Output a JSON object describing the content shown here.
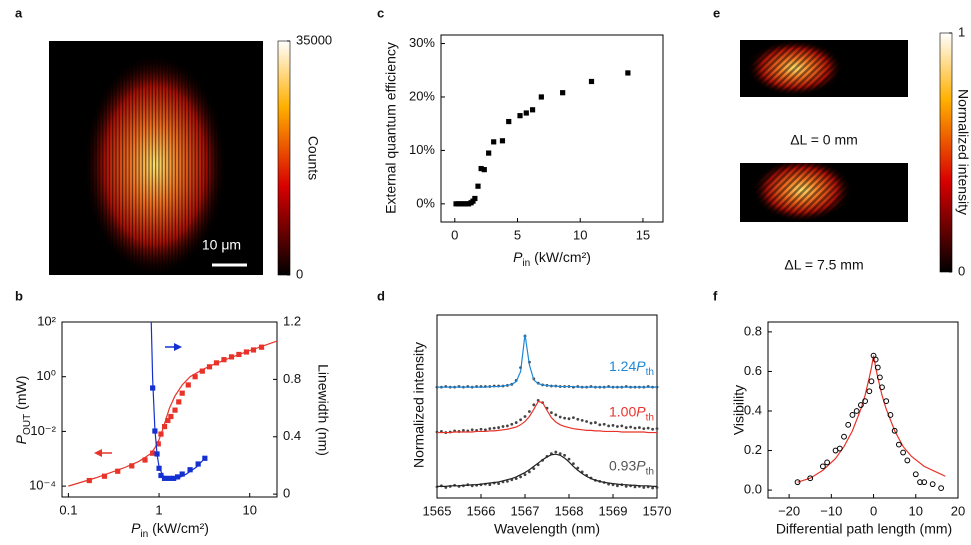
{
  "chart_data": [
    {
      "type": "image",
      "panel": "a",
      "colorbar_label": "Counts",
      "colorbar_lim": [
        0,
        35000
      ],
      "colorbar_ticks": [
        0,
        35000
      ],
      "scale_bar": "10 μm"
    },
    {
      "type": "scatter",
      "panel": "c",
      "xlabel": {
        "symbol": "P",
        "subscript": "in",
        "unit": " (kW/cm²)"
      },
      "ylabel": "External quantum efficiency",
      "xlim": [
        -1.1,
        16.6
      ],
      "xticks": [
        0,
        5,
        10,
        15
      ],
      "ylim": [
        -3.4,
        31.6
      ],
      "yticks": [
        {
          "value": 0,
          "label": "0%"
        },
        {
          "value": 10,
          "label": "10%"
        },
        {
          "value": 20,
          "label": "20%"
        },
        {
          "value": 30,
          "label": "30%"
        }
      ],
      "series": [
        {
          "color": "#000000",
          "marker": "square",
          "line": false,
          "x": [
            0.1,
            0.3,
            0.5,
            0.7,
            0.9,
            1.1,
            1.3,
            1.45,
            1.6,
            1.85,
            2.1,
            2.35,
            2.7,
            3.1,
            3.8,
            4.3,
            5.2,
            5.7,
            6.2,
            6.9,
            8.6,
            10.9,
            13.8
          ],
          "values": [
            0,
            0,
            0,
            0,
            0,
            0,
            0.2,
            0.5,
            1.0,
            3.3,
            6.6,
            6.4,
            9.5,
            11.6,
            11.8,
            15.4,
            16.5,
            17.0,
            17.6,
            20.0,
            20.8,
            22.9,
            24.5
          ]
        }
      ]
    },
    {
      "type": "image",
      "panel": "e",
      "colorbar_label": "Normalized intensity",
      "colorbar_lim": [
        0,
        1
      ],
      "colorbar_ticks": [
        0,
        1
      ],
      "captions": [
        "ΔL = 0 mm",
        "ΔL = 7.5 mm"
      ]
    },
    {
      "type": "line",
      "panel": "b",
      "xlabel": {
        "symbol": "P",
        "subscript": "in",
        "unit": " (kW/cm²)"
      },
      "ylabel": {
        "symbol": "P",
        "subscript": "OUT",
        "unit": " (mW)"
      },
      "y2label": "Linewidth (nm)",
      "xscale": "log",
      "yscale": "log",
      "xlim": [
        0.085,
        20
      ],
      "xticks": [
        0.1,
        1,
        10
      ],
      "ylim": [
        4e-05,
        100
      ],
      "yticks": [
        {
          "value": 0.0001,
          "label": "10⁻⁴"
        },
        {
          "value": 0.01,
          "label": "10⁻²"
        },
        {
          "value": 1,
          "label": "10⁰"
        },
        {
          "value": 100,
          "label": "10²"
        }
      ],
      "y2lim": [
        -0.02,
        1.2
      ],
      "y2ticks": [
        0,
        0.4,
        0.8,
        1.2
      ],
      "series": [
        {
          "color": "#e8332a",
          "marker": "square",
          "line": false,
          "x": [
            0.17,
            0.25,
            0.35,
            0.5,
            0.7,
            0.85,
            0.98,
            1.05,
            1.15,
            1.25,
            1.35,
            1.5,
            1.65,
            1.8,
            2.1,
            2.5,
            3.0,
            3.6,
            4.3,
            5.2,
            6.3,
            7.6,
            9.2,
            11,
            13.5
          ],
          "values": [
            0.00016,
            0.00023,
            0.00035,
            0.00055,
            0.0009,
            0.0016,
            0.0035,
            0.008,
            0.015,
            0.025,
            0.035,
            0.06,
            0.12,
            0.25,
            0.5,
            1.0,
            1.6,
            2.3,
            3.2,
            4.2,
            5.3,
            6.5,
            8,
            9.5,
            12
          ]
        },
        {
          "color": "#e8332a",
          "marker": "none",
          "line": true,
          "x": [
            0.1,
            0.2,
            0.4,
            0.6,
            0.8,
            0.9,
            1.0,
            1.1,
            1.2,
            1.3,
            1.5,
            1.8,
            2.2,
            3,
            4,
            6,
            10,
            20
          ],
          "values": [
            0.0001,
            0.0002,
            0.00045,
            0.0008,
            0.0015,
            0.0025,
            0.005,
            0.012,
            0.03,
            0.07,
            0.2,
            0.5,
            1.0,
            1.8,
            2.8,
            4.8,
            9,
            20
          ]
        },
        {
          "color": "#1530d0",
          "marker": "square",
          "line": false,
          "axis": "y2",
          "x": [
            0.85,
            0.9,
            0.95,
            1.0,
            1.05,
            1.15,
            1.3,
            1.45,
            1.6,
            1.8,
            2.2,
            2.7,
            3.2
          ],
          "values": [
            0.74,
            0.44,
            0.28,
            0.18,
            0.13,
            0.11,
            0.11,
            0.11,
            0.12,
            0.14,
            0.17,
            0.21,
            0.25
          ]
        },
        {
          "color": "#1530d0",
          "marker": "none",
          "line": true,
          "axis": "y2",
          "x": [
            0.82,
            0.85,
            0.9,
            0.95,
            1.0,
            1.1,
            1.3,
            1.6,
            2.0,
            2.6,
            3.2
          ],
          "values": [
            1.2,
            0.8,
            0.45,
            0.28,
            0.19,
            0.13,
            0.105,
            0.11,
            0.14,
            0.19,
            0.25
          ]
        }
      ]
    },
    {
      "type": "line",
      "panel": "d",
      "xlabel": "Wavelength (nm)",
      "ylabel": "Normalized intensity",
      "xlim": [
        1565,
        1570
      ],
      "xticks": [
        1565,
        1566,
        1567,
        1568,
        1569,
        1570
      ],
      "ylim": [
        0,
        3.3
      ],
      "x": [
        1565,
        1565.1,
        1565.2,
        1565.3,
        1565.4,
        1565.5,
        1565.6,
        1565.7,
        1565.8,
        1565.9,
        1566,
        1566.1,
        1566.2,
        1566.3,
        1566.4,
        1566.5,
        1566.6,
        1566.7,
        1566.8,
        1566.9,
        1567,
        1567.1,
        1567.2,
        1567.3,
        1567.4,
        1567.5,
        1567.6,
        1567.7,
        1567.8,
        1567.9,
        1568,
        1568.1,
        1568.2,
        1568.3,
        1568.4,
        1568.5,
        1568.6,
        1568.7,
        1568.8,
        1568.9,
        1569,
        1569.1,
        1569.2,
        1569.3,
        1569.4,
        1569.5,
        1569.6,
        1569.7,
        1569.8,
        1569.9,
        1570
      ],
      "series": [
        {
          "color": "#444444",
          "marker": "dot",
          "line": false,
          "values": [
            2.0,
            2.0,
            2.01,
            2.0,
            2.0,
            2.01,
            2.0,
            2.01,
            2.0,
            2.01,
            2.01,
            2.01,
            2.01,
            2.02,
            2.02,
            2.02,
            2.03,
            2.05,
            2.12,
            2.35,
            2.92,
            2.45,
            2.15,
            2.07,
            2.04,
            2.03,
            2.02,
            2.02,
            2.01,
            2.01,
            2.01,
            2.0,
            2.01,
            2.0,
            2.0,
            2.01,
            2.0,
            2.0,
            2.0,
            2.01,
            2.0,
            2.0,
            2.0,
            2.01,
            2.0,
            2.0,
            2.0,
            2.0,
            2.01,
            2.0,
            2.0
          ]
        },
        {
          "color": "#1e88d8",
          "marker": "none",
          "line": true,
          "label": {
            "prefix": "1.24",
            "symbol": "P",
            "subscript": "th"
          },
          "label_color": "#1e88d8",
          "values": [
            2.0,
            2.0,
            2.0,
            2.0,
            2.0,
            2.0,
            2.0,
            2.0,
            2.0,
            2.0,
            2.0,
            2.0,
            2.01,
            2.01,
            2.01,
            2.02,
            2.03,
            2.05,
            2.1,
            2.28,
            2.95,
            2.4,
            2.13,
            2.06,
            2.04,
            2.03,
            2.02,
            2.02,
            2.01,
            2.01,
            2.01,
            2.01,
            2.0,
            2.0,
            2.0,
            2.0,
            2.0,
            2.0,
            2.0,
            2.0,
            2.0,
            2.0,
            2.0,
            2.0,
            2.0,
            2.0,
            2.0,
            2.0,
            2.0,
            2.0,
            2.0
          ]
        },
        {
          "color": "#444444",
          "marker": "dot",
          "line": false,
          "values": [
            1.19,
            1.2,
            1.18,
            1.19,
            1.21,
            1.2,
            1.22,
            1.21,
            1.23,
            1.22,
            1.24,
            1.23,
            1.25,
            1.26,
            1.27,
            1.29,
            1.3,
            1.33,
            1.36,
            1.41,
            1.47,
            1.56,
            1.68,
            1.76,
            1.72,
            1.62,
            1.54,
            1.5,
            1.46,
            1.44,
            1.43,
            1.45,
            1.42,
            1.4,
            1.38,
            1.35,
            1.36,
            1.32,
            1.33,
            1.3,
            1.31,
            1.29,
            1.3,
            1.27,
            1.28,
            1.26,
            1.27,
            1.25,
            1.26,
            1.24,
            1.25
          ]
        },
        {
          "color": "#e8332a",
          "marker": "none",
          "line": true,
          "label": {
            "prefix": "1.00",
            "symbol": "P",
            "subscript": "th"
          },
          "label_color": "#e8332a",
          "values": [
            1.18,
            1.18,
            1.18,
            1.18,
            1.19,
            1.19,
            1.19,
            1.19,
            1.19,
            1.2,
            1.2,
            1.2,
            1.21,
            1.21,
            1.22,
            1.23,
            1.24,
            1.26,
            1.28,
            1.32,
            1.38,
            1.47,
            1.6,
            1.74,
            1.72,
            1.58,
            1.45,
            1.37,
            1.32,
            1.29,
            1.27,
            1.25,
            1.24,
            1.23,
            1.22,
            1.22,
            1.21,
            1.21,
            1.2,
            1.2,
            1.2,
            1.2,
            1.19,
            1.19,
            1.19,
            1.19,
            1.19,
            1.19,
            1.18,
            1.18,
            1.18
          ]
        },
        {
          "color": "#444444",
          "marker": "dot",
          "line": false,
          "values": [
            0.2,
            0.22,
            0.19,
            0.21,
            0.23,
            0.21,
            0.22,
            0.24,
            0.22,
            0.23,
            0.24,
            0.25,
            0.24,
            0.27,
            0.26,
            0.29,
            0.3,
            0.33,
            0.35,
            0.38,
            0.42,
            0.47,
            0.53,
            0.6,
            0.68,
            0.75,
            0.8,
            0.83,
            0.8,
            0.77,
            0.7,
            0.62,
            0.54,
            0.47,
            0.41,
            0.36,
            0.32,
            0.3,
            0.28,
            0.25,
            0.24,
            0.22,
            0.24,
            0.21,
            0.22,
            0.2,
            0.21,
            0.19,
            0.2,
            0.18,
            0.19
          ]
        },
        {
          "color": "#222222",
          "marker": "none",
          "line": true,
          "label": {
            "prefix": "0.93",
            "symbol": "P",
            "subscript": "th"
          },
          "label_color": "#555555",
          "values": [
            0.21,
            0.21,
            0.21,
            0.22,
            0.22,
            0.22,
            0.23,
            0.23,
            0.24,
            0.24,
            0.25,
            0.26,
            0.27,
            0.28,
            0.29,
            0.31,
            0.33,
            0.35,
            0.38,
            0.42,
            0.46,
            0.51,
            0.57,
            0.63,
            0.69,
            0.74,
            0.78,
            0.79,
            0.77,
            0.72,
            0.65,
            0.57,
            0.5,
            0.44,
            0.39,
            0.35,
            0.32,
            0.3,
            0.28,
            0.27,
            0.26,
            0.25,
            0.24,
            0.24,
            0.23,
            0.23,
            0.22,
            0.22,
            0.22,
            0.21,
            0.21
          ]
        }
      ]
    },
    {
      "type": "scatter",
      "panel": "f",
      "xlabel": "Differential path length (mm)",
      "ylabel": "Visibility",
      "xlim": [
        -25,
        20
      ],
      "xticks": [
        {
          "value": -20,
          "label": "−20"
        },
        {
          "value": -10,
          "label": "−10"
        },
        0,
        10,
        20
      ],
      "ylim": [
        -0.04,
        0.85
      ],
      "yticks": [
        {
          "value": 0,
          "label": "0.0"
        },
        0.2,
        0.4,
        0.6,
        0.8
      ],
      "series": [
        {
          "color": "#e8332a",
          "marker": "none",
          "line": true,
          "x": [
            -18,
            -15,
            -12,
            -9,
            -7,
            -5,
            -3,
            -2,
            -1,
            -0.5,
            0,
            0.5,
            1,
            2,
            3,
            5,
            7,
            9,
            12,
            15,
            17
          ],
          "values": [
            0.04,
            0.06,
            0.1,
            0.16,
            0.22,
            0.3,
            0.41,
            0.48,
            0.57,
            0.62,
            0.68,
            0.62,
            0.57,
            0.48,
            0.41,
            0.3,
            0.22,
            0.17,
            0.12,
            0.09,
            0.07
          ]
        },
        {
          "color": "#000000",
          "marker": "circle-open",
          "line": false,
          "x": [
            -18,
            -15,
            -12,
            -11,
            -9,
            -8,
            -7,
            -6,
            -5,
            -4,
            -3,
            -2,
            -1,
            -0.5,
            0,
            0.5,
            1,
            1.5,
            2,
            3,
            4,
            5,
            6,
            7,
            8,
            10,
            11,
            12,
            14,
            16
          ],
          "values": [
            0.04,
            0.06,
            0.12,
            0.14,
            0.2,
            0.21,
            0.27,
            0.33,
            0.38,
            0.4,
            0.43,
            0.45,
            0.5,
            0.55,
            0.68,
            0.66,
            0.62,
            0.57,
            0.52,
            0.45,
            0.38,
            0.3,
            0.23,
            0.19,
            0.15,
            0.08,
            0.04,
            0.04,
            0.03,
            0.01
          ]
        }
      ]
    }
  ]
}
